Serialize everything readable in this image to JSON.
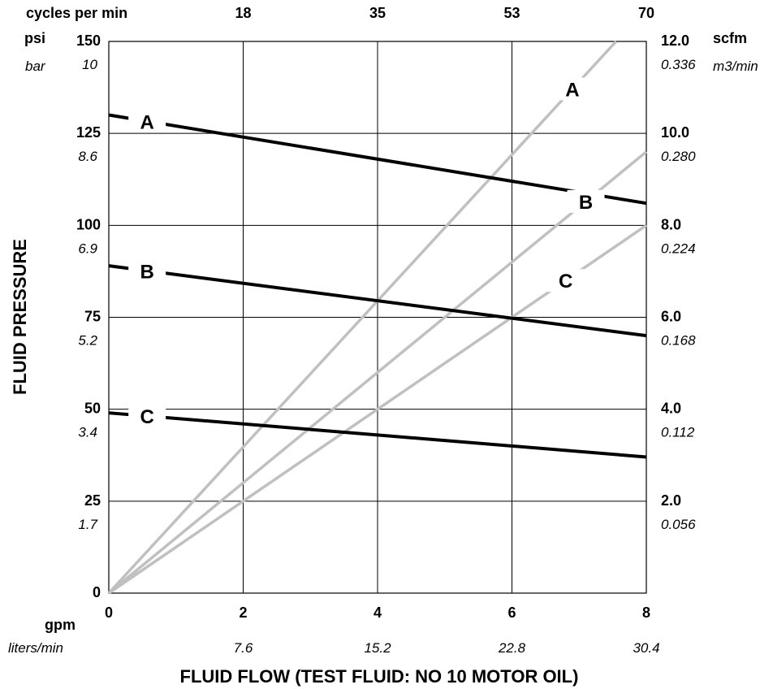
{
  "chart_data": {
    "type": "line",
    "title": "",
    "xlabel": "FLUID FLOW (TEST FLUID: NO 10 MOTOR OIL)",
    "ylabel": "FLUID PRESSURE",
    "xlim": [
      0,
      8
    ],
    "ylim": [
      0,
      150
    ],
    "y2lim": [
      0,
      12
    ],
    "grid": true,
    "legend": "none",
    "x_ticks": [
      "0",
      "2",
      "4",
      "6",
      "8"
    ],
    "x_unit": "gpm",
    "x_alt_unit": "liters/min",
    "x_alt_ticks": [
      "7.6",
      "15.2",
      "22.8",
      "30.4"
    ],
    "top_unit": "cycles per min",
    "top_ticks": [
      "18",
      "35",
      "53",
      "70"
    ],
    "y_ticks": [
      "0",
      "25",
      "50",
      "75",
      "100",
      "125",
      "150"
    ],
    "y_unit": "psi",
    "y_alt_unit": "bar",
    "y_alt_ticks": [
      "1.7",
      "3.4",
      "5.2",
      "6.9",
      "8.6",
      "10"
    ],
    "y2_ticks": [
      "2.0",
      "4.0",
      "6.0",
      "8.0",
      "10.0",
      "12.0"
    ],
    "y2_unit": "scfm",
    "y2_alt_unit": "m3/min",
    "y2_alt_ticks": [
      "0.056",
      "0.112",
      "0.168",
      "0.224",
      "0.280",
      "0.336"
    ],
    "pressure_curves": [
      {
        "label": "A",
        "color": "#000000",
        "x": [
          0,
          8
        ],
        "y": [
          130,
          106
        ]
      },
      {
        "label": "B",
        "color": "#000000",
        "x": [
          0,
          8
        ],
        "y": [
          89,
          70
        ]
      },
      {
        "label": "C",
        "color": "#000000",
        "x": [
          0,
          8
        ],
        "y": [
          49,
          37
        ]
      }
    ],
    "air_curves": [
      {
        "label": "A",
        "color": "#c0c0c0",
        "x": [
          0,
          7.55
        ],
        "y": [
          0,
          12
        ]
      },
      {
        "label": "B",
        "color": "#c0c0c0",
        "x": [
          0,
          8
        ],
        "y": [
          0,
          9.6
        ]
      },
      {
        "label": "C",
        "color": "#c0c0c0",
        "x": [
          0,
          8
        ],
        "y": [
          0,
          8
        ]
      }
    ]
  }
}
